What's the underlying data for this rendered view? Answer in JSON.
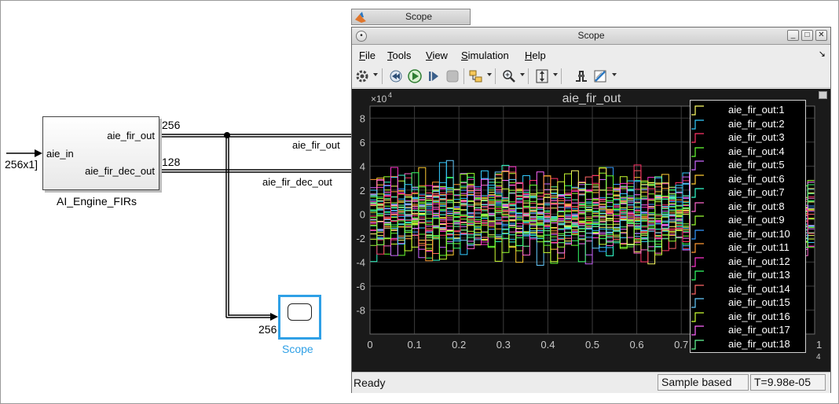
{
  "model": {
    "block": {
      "name": "AI_Engine_FIRs",
      "input_port": "aie_in",
      "output_ports": [
        "aie_fir_out",
        "aie_fir_dec_out"
      ]
    },
    "input_dim": "256x1]",
    "signals": [
      {
        "label": "aie_fir_out",
        "width": "256"
      },
      {
        "label": "aie_fir_dec_out",
        "width": "128"
      }
    ],
    "scope_block": {
      "name": "Scope",
      "input_width": "256"
    }
  },
  "taskbar": {
    "title": "Scope"
  },
  "window": {
    "title": "Scope",
    "controls": {
      "minimize": "_",
      "maximize": "□",
      "close": "✕"
    },
    "menu": [
      {
        "label": "File",
        "u": "F",
        "rest": "ile"
      },
      {
        "label": "Tools",
        "u": "T",
        "rest": "ools"
      },
      {
        "label": "View",
        "u": "V",
        "rest": "iew"
      },
      {
        "label": "Simulation",
        "u": "S",
        "rest": "imulation"
      },
      {
        "label": "Help",
        "u": "H",
        "rest": "elp"
      }
    ],
    "toolbar_icons": [
      "gear-icon",
      "rewind-icon",
      "run-icon",
      "step-forward-icon",
      "stop-icon",
      "highlight-block-icon",
      "zoom-icon",
      "scale-axes-icon",
      "triggers-icon",
      "style-icon"
    ],
    "status": {
      "left": "Ready",
      "mode": "Sample based",
      "time": "T=9.98e-05"
    }
  },
  "chart_data": {
    "type": "line",
    "title": "aie_fir_out",
    "exponent_label": "×10",
    "exponent": "4",
    "xlim": [
      0,
      1
    ],
    "ylim": [
      -10,
      9
    ],
    "xticks": [
      "0",
      "0.1",
      "0.2",
      "0.3",
      "0.4",
      "0.5",
      "0.6",
      "0.7"
    ],
    "xtick_values": [
      0,
      0.1,
      0.2,
      0.3,
      0.4,
      0.5,
      0.6,
      0.7
    ],
    "right_edge_tick": "1",
    "right_edge_exponent": "4",
    "yticks": [
      "8",
      "6",
      "4",
      "2",
      "0",
      "-2",
      "-4",
      "-6",
      "-8"
    ],
    "ytick_values": [
      8,
      6,
      4,
      2,
      0,
      -2,
      -4,
      -6,
      -8
    ],
    "grid": true,
    "legend_position": "top-right",
    "series_count": 256,
    "visible_series_colors": [
      "#ffff66",
      "#33ccff",
      "#ff3366",
      "#66ff33",
      "#cc66ff",
      "#ffcc33",
      "#33ffcc",
      "#ff66cc",
      "#99ff33",
      "#3399ff",
      "#ff9933",
      "#ff33cc",
      "#33ff66",
      "#ff6666",
      "#66ccff",
      "#ccff33",
      "#ff66ff",
      "#66ff99"
    ],
    "legend": [
      "aie_fir_out:1",
      "aie_fir_out:2",
      "aie_fir_out:3",
      "aie_fir_out:4",
      "aie_fir_out:5",
      "aie_fir_out:6",
      "aie_fir_out:7",
      "aie_fir_out:8",
      "aie_fir_out:9",
      "aie_fir_out:10",
      "aie_fir_out:11",
      "aie_fir_out:12",
      "aie_fir_out:13",
      "aie_fir_out:14",
      "aie_fir_out:15",
      "aie_fir_out:16",
      "aie_fir_out:17",
      "aie_fir_out:18"
    ]
  },
  "colors": {
    "plot_bg": "#000000",
    "figure_bg": "#1a1a1a",
    "grid": "#3c3c3c",
    "axes_text": "#c8c8c8",
    "scope_highlight": "#2fa0e6"
  }
}
